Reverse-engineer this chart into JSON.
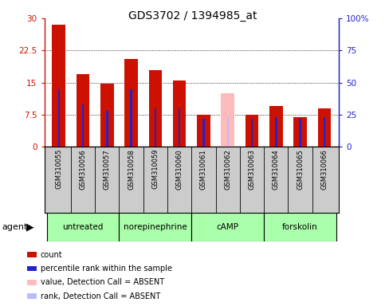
{
  "title": "GDS3702 / 1394985_at",
  "samples": [
    "GSM310055",
    "GSM310056",
    "GSM310057",
    "GSM310058",
    "GSM310059",
    "GSM310060",
    "GSM310061",
    "GSM310062",
    "GSM310063",
    "GSM310064",
    "GSM310065",
    "GSM310066"
  ],
  "count_values": [
    28.5,
    17.0,
    14.7,
    20.5,
    18.0,
    15.5,
    7.5,
    null,
    7.5,
    9.5,
    7.0,
    9.0
  ],
  "rank_values": [
    13.5,
    10.0,
    8.5,
    13.5,
    9.0,
    9.0,
    6.5,
    null,
    6.5,
    7.0,
    6.5,
    7.0
  ],
  "absent_count_value": [
    null,
    null,
    null,
    null,
    null,
    null,
    null,
    12.5,
    null,
    null,
    null,
    null
  ],
  "absent_rank_value": [
    null,
    null,
    null,
    null,
    null,
    null,
    null,
    7.0,
    null,
    null,
    null,
    null
  ],
  "ylim_left": [
    0,
    30
  ],
  "ylim_right": [
    0,
    100
  ],
  "yticks_left": [
    0,
    7.5,
    15,
    22.5,
    30
  ],
  "yticks_right": [
    0,
    25,
    50,
    75,
    100
  ],
  "ytick_labels_left": [
    "0",
    "7.5",
    "15",
    "22.5",
    "30"
  ],
  "ytick_labels_right": [
    "0",
    "25",
    "50",
    "75",
    "100%"
  ],
  "agent_groups": [
    {
      "label": "untreated",
      "start": 0,
      "end": 3
    },
    {
      "label": "norepinephrine",
      "start": 3,
      "end": 6
    },
    {
      "label": "cAMP",
      "start": 6,
      "end": 9
    },
    {
      "label": "forskolin",
      "start": 9,
      "end": 12
    }
  ],
  "bar_width": 0.55,
  "rank_bar_width": 0.08,
  "count_color": "#cc1100",
  "rank_color": "#2222cc",
  "absent_count_color": "#ffbbbb",
  "absent_rank_color": "#bbbbff",
  "grid_color": "black",
  "sample_bg_color": "#cccccc",
  "agent_bg_color_light": "#aaffaa",
  "agent_bg_color_dark": "#55ee55",
  "legend_items": [
    {
      "color": "#cc1100",
      "label": "count"
    },
    {
      "color": "#2222cc",
      "label": "percentile rank within the sample"
    },
    {
      "color": "#ffbbbb",
      "label": "value, Detection Call = ABSENT"
    },
    {
      "color": "#bbbbff",
      "label": "rank, Detection Call = ABSENT"
    }
  ]
}
